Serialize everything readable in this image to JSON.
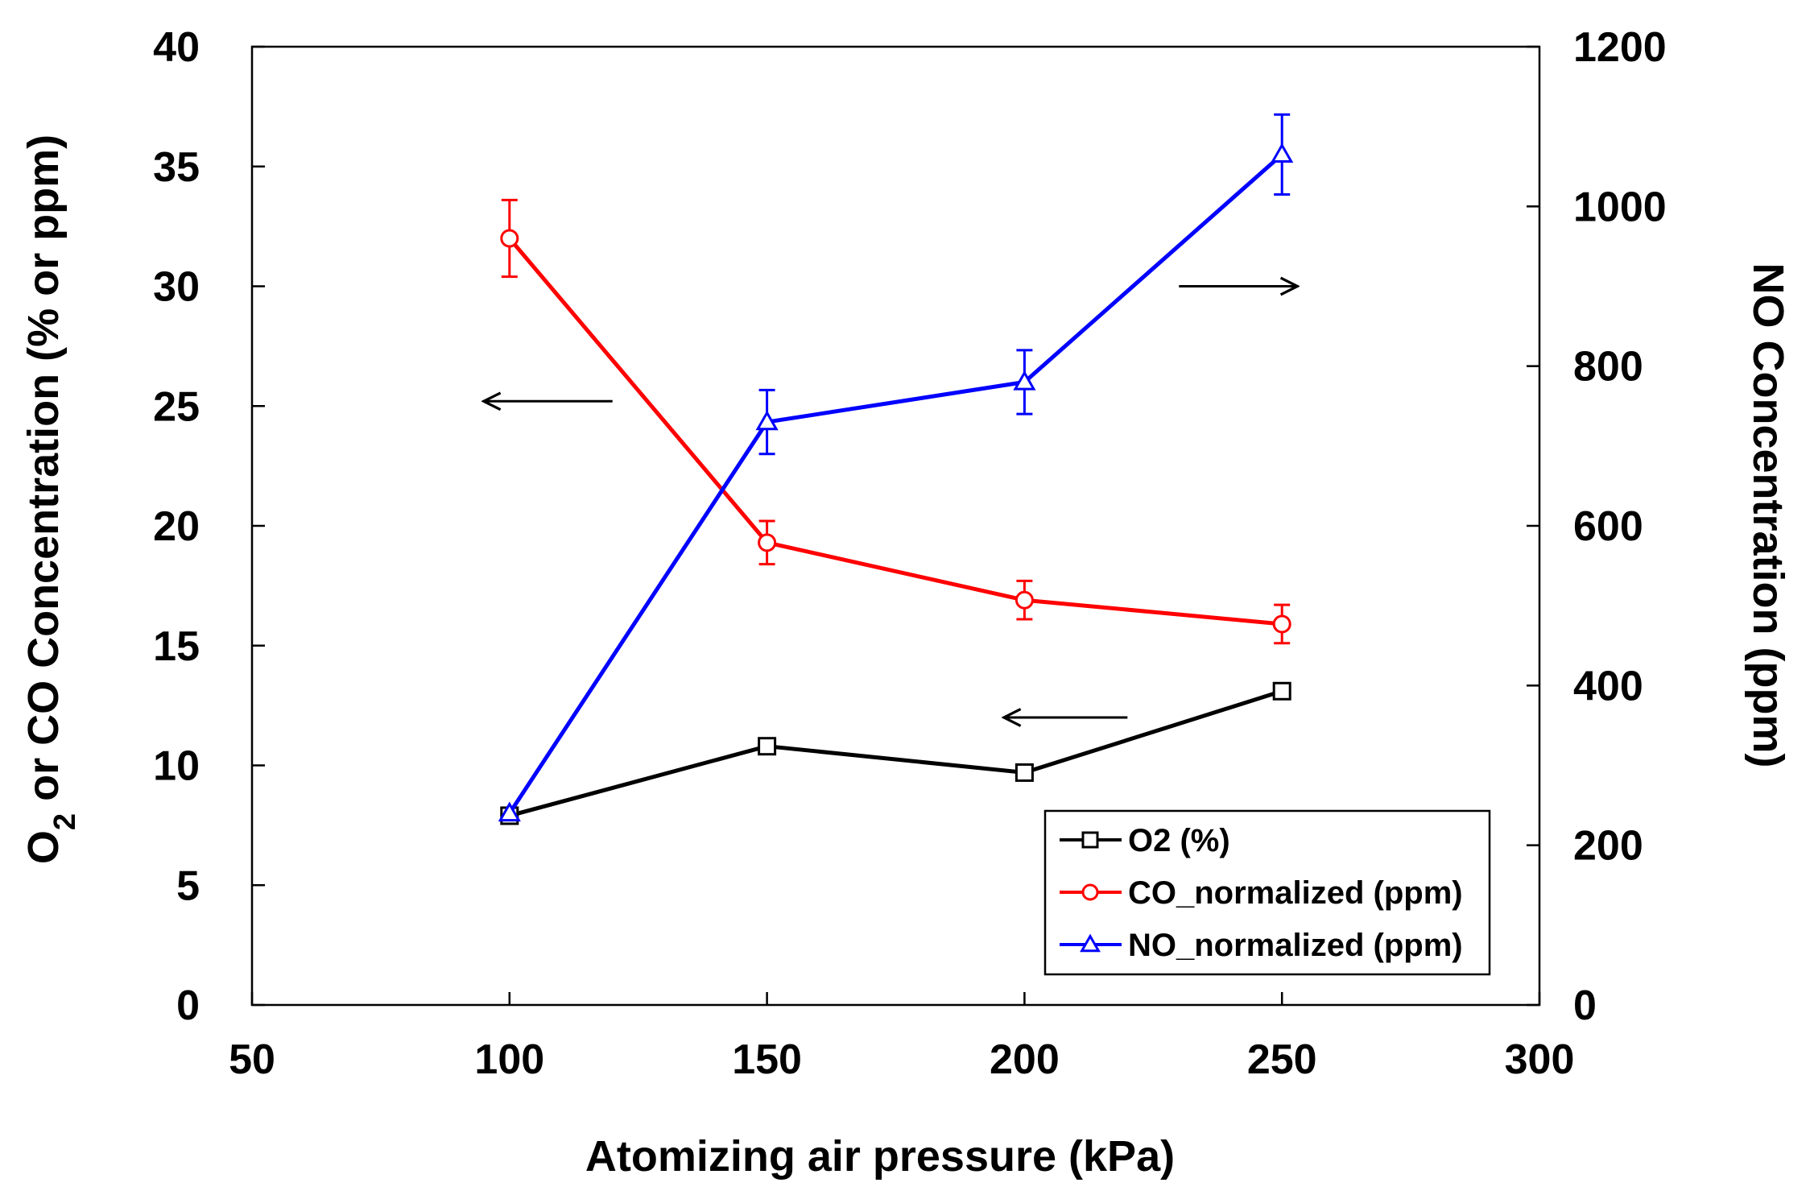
{
  "chart_data": {
    "type": "line",
    "xlabel": "Atomizing air pressure (kPa)",
    "ylabel": {
      "main": "O",
      "sub": "2",
      "rest": " or CO Concentration  (% or ppm)"
    },
    "y2label": "NO Concentration (ppm)",
    "xlim": [
      50,
      300
    ],
    "xticks": [
      50,
      100,
      150,
      200,
      250,
      300
    ],
    "ylim": [
      0,
      40
    ],
    "yticks": [
      0,
      5,
      10,
      15,
      20,
      25,
      30,
      35,
      40
    ],
    "y2lim": [
      0,
      1200
    ],
    "y2ticks": [
      0,
      200,
      400,
      600,
      800,
      1000,
      1200
    ],
    "grid": false,
    "legend_position": "bottom-right",
    "series": [
      {
        "name": "O2 (%)",
        "axis": "left",
        "color": "#000000",
        "marker": "square",
        "x": [
          100,
          150,
          200,
          250
        ],
        "y": [
          7.9,
          10.8,
          9.7,
          13.1
        ]
      },
      {
        "name": "CO_normalized (ppm)",
        "axis": "left",
        "color": "#ff0000",
        "marker": "circle",
        "x": [
          100,
          150,
          200,
          250
        ],
        "y": [
          32.0,
          19.3,
          16.9,
          15.9
        ],
        "err": [
          1.6,
          0.9,
          0.8,
          0.8
        ]
      },
      {
        "name": "NO_normalized (ppm)",
        "axis": "right",
        "color": "#0000ff",
        "marker": "triangle",
        "x": [
          100,
          150,
          200,
          250
        ],
        "y": [
          240,
          730,
          780,
          1065
        ],
        "err": [
          0,
          40,
          40,
          50
        ]
      }
    ],
    "annotations": [
      {
        "type": "arrow",
        "axis": "left",
        "from": [
          120,
          25.2
        ],
        "to": [
          95,
          25.2
        ]
      },
      {
        "type": "arrow",
        "axis": "left",
        "from": [
          220,
          12.0
        ],
        "to": [
          196,
          12.0
        ]
      },
      {
        "type": "arrow",
        "axis": "left",
        "from": [
          230,
          30.0
        ],
        "to": [
          253,
          30.0
        ]
      }
    ]
  }
}
